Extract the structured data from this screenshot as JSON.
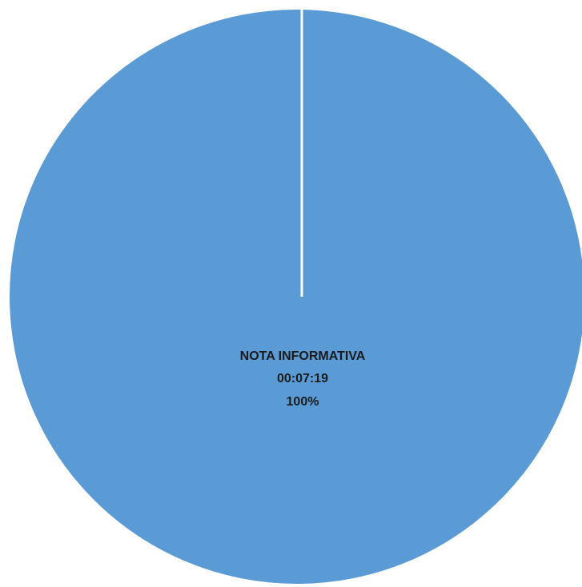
{
  "chart_data": {
    "type": "pie",
    "title": "",
    "slices": [
      {
        "label": "NOTA INFORMATIVA",
        "value_label": "00:07:19",
        "percent_label": "100%",
        "value": 100,
        "color": "#5b9bd5"
      }
    ],
    "separator_color": "#ffffff"
  }
}
